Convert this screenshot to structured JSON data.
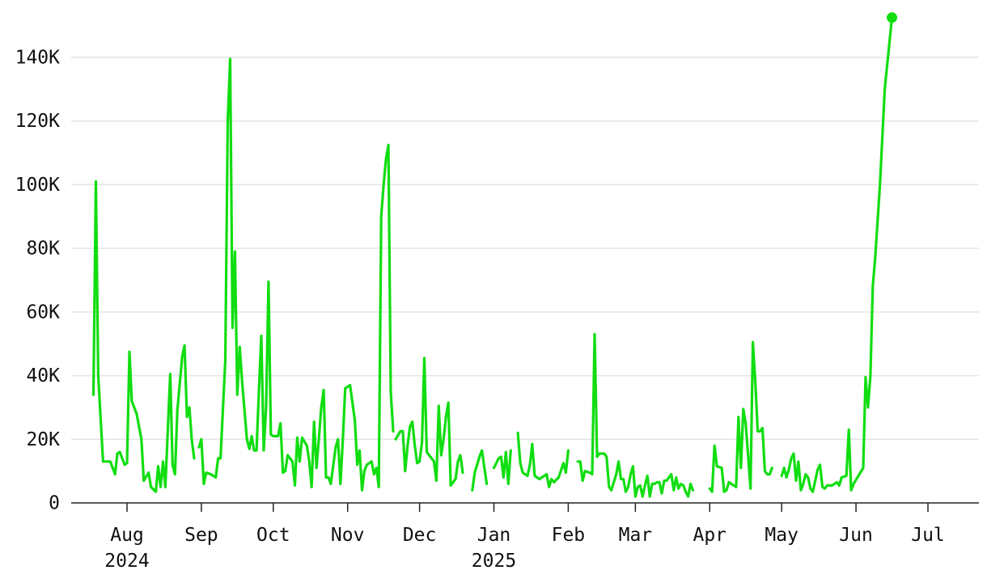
{
  "chart_data": {
    "type": "line",
    "title": "",
    "xlabel": "",
    "ylabel": "",
    "color": "#11dd11",
    "ylim": [
      0,
      150000
    ],
    "grid": "horizontal",
    "legend": "none",
    "end_marker": true,
    "y_ticks": [
      {
        "value": 0,
        "label": "0"
      },
      {
        "value": 20000,
        "label": "20K"
      },
      {
        "value": 40000,
        "label": "40K"
      },
      {
        "value": 60000,
        "label": "60K"
      },
      {
        "value": 80000,
        "label": "80K"
      },
      {
        "value": 100000,
        "label": "100K"
      },
      {
        "value": 120000,
        "label": "120K"
      },
      {
        "value": 140000,
        "label": "140K"
      }
    ],
    "x_ticks": [
      {
        "date": "2024-08-01",
        "label": "Aug",
        "year": "2024"
      },
      {
        "date": "2024-09-01",
        "label": "Sep",
        "year": ""
      },
      {
        "date": "2024-10-01",
        "label": "Oct",
        "year": ""
      },
      {
        "date": "2024-11-01",
        "label": "Nov",
        "year": ""
      },
      {
        "date": "2024-12-01",
        "label": "Dec",
        "year": ""
      },
      {
        "date": "2025-01-01",
        "label": "Jan",
        "year": "2025"
      },
      {
        "date": "2025-02-01",
        "label": "Feb",
        "year": ""
      },
      {
        "date": "2025-03-01",
        "label": "Mar",
        "year": ""
      },
      {
        "date": "2025-04-01",
        "label": "Apr",
        "year": ""
      },
      {
        "date": "2025-05-01",
        "label": "May",
        "year": ""
      },
      {
        "date": "2025-06-01",
        "label": "Jun",
        "year": ""
      },
      {
        "date": "2025-07-01",
        "label": "Jul",
        "year": ""
      }
    ],
    "x_range": [
      "2024-07-12",
      "2025-07-27"
    ],
    "segments": [
      [
        [
          "2024-07-18",
          34000
        ],
        [
          "2024-07-19",
          101000
        ],
        [
          "2024-07-20",
          40000
        ],
        [
          "2024-07-22",
          13000
        ],
        [
          "2024-07-25",
          13000
        ],
        [
          "2024-07-27",
          9000
        ],
        [
          "2024-07-28",
          15500
        ],
        [
          "2024-07-29",
          16000
        ],
        [
          "2024-07-31",
          12000
        ],
        [
          "2024-08-01",
          12500
        ],
        [
          "2024-08-02",
          47500
        ],
        [
          "2024-08-03",
          32000
        ],
        [
          "2024-08-05",
          28000
        ],
        [
          "2024-08-07",
          20000
        ],
        [
          "2024-08-08",
          7000
        ],
        [
          "2024-08-10",
          9500
        ],
        [
          "2024-08-11",
          5000
        ],
        [
          "2024-08-13",
          3500
        ],
        [
          "2024-08-14",
          11500
        ],
        [
          "2024-08-15",
          5000
        ],
        [
          "2024-08-16",
          13000
        ],
        [
          "2024-08-17",
          5000
        ],
        [
          "2024-08-19",
          40500
        ],
        [
          "2024-08-20",
          12000
        ],
        [
          "2024-08-21",
          9000
        ],
        [
          "2024-08-22",
          29000
        ],
        [
          "2024-08-24",
          46000
        ],
        [
          "2024-08-25",
          49500
        ],
        [
          "2024-08-26",
          27000
        ],
        [
          "2024-08-27",
          30000
        ],
        [
          "2024-08-28",
          20000
        ],
        [
          "2024-08-29",
          14000
        ]
      ],
      [
        [
          "2024-08-31",
          17500
        ],
        [
          "2024-09-01",
          20000
        ],
        [
          "2024-09-02",
          6000
        ],
        [
          "2024-09-03",
          9500
        ],
        [
          "2024-09-05",
          9000
        ],
        [
          "2024-09-07",
          8000
        ],
        [
          "2024-09-08",
          14000
        ],
        [
          "2024-09-09",
          14000
        ],
        [
          "2024-09-11",
          45000
        ],
        [
          "2024-09-12",
          120000
        ],
        [
          "2024-09-13",
          139500
        ],
        [
          "2024-09-14",
          55000
        ],
        [
          "2024-09-15",
          79000
        ],
        [
          "2024-09-16",
          34000
        ],
        [
          "2024-09-17",
          49000
        ],
        [
          "2024-09-18",
          38000
        ],
        [
          "2024-09-20",
          20000
        ],
        [
          "2024-09-21",
          17000
        ],
        [
          "2024-09-22",
          21000
        ],
        [
          "2024-09-23",
          16500
        ],
        [
          "2024-09-24",
          16500
        ],
        [
          "2024-09-25",
          35000
        ],
        [
          "2024-09-26",
          52500
        ],
        [
          "2024-09-27",
          16500
        ],
        [
          "2024-09-28",
          30000
        ],
        [
          "2024-09-29",
          69500
        ],
        [
          "2024-09-30",
          21500
        ],
        [
          "2024-10-01",
          21000
        ],
        [
          "2024-10-03",
          21000
        ],
        [
          "2024-10-04",
          25000
        ],
        [
          "2024-10-05",
          9500
        ],
        [
          "2024-10-06",
          10000
        ],
        [
          "2024-10-07",
          15000
        ],
        [
          "2024-10-09",
          13000
        ],
        [
          "2024-10-10",
          5500
        ],
        [
          "2024-10-11",
          20500
        ],
        [
          "2024-10-12",
          13000
        ],
        [
          "2024-10-13",
          20500
        ],
        [
          "2024-10-15",
          18000
        ],
        [
          "2024-10-16",
          13000
        ],
        [
          "2024-10-17",
          5000
        ],
        [
          "2024-10-18",
          25500
        ],
        [
          "2024-10-19",
          11000
        ],
        [
          "2024-10-20",
          20000
        ],
        [
          "2024-10-21",
          30000
        ],
        [
          "2024-10-22",
          35500
        ],
        [
          "2024-10-23",
          8000
        ],
        [
          "2024-10-24",
          8000
        ],
        [
          "2024-10-25",
          6000
        ],
        [
          "2024-10-27",
          17500
        ],
        [
          "2024-10-28",
          20000
        ],
        [
          "2024-10-29",
          6000
        ],
        [
          "2024-10-30",
          20000
        ],
        [
          "2024-10-31",
          36000
        ],
        [
          "2024-11-02",
          37000
        ],
        [
          "2024-11-04",
          26000
        ],
        [
          "2024-11-05",
          12000
        ],
        [
          "2024-11-06",
          16500
        ],
        [
          "2024-11-07",
          4000
        ],
        [
          "2024-11-08",
          10000
        ],
        [
          "2024-11-09",
          12000
        ],
        [
          "2024-11-11",
          13000
        ],
        [
          "2024-11-12",
          9000
        ],
        [
          "2024-11-13",
          11000
        ],
        [
          "2024-11-14",
          5000
        ],
        [
          "2024-11-15",
          90000
        ],
        [
          "2024-11-16",
          100000
        ],
        [
          "2024-11-17",
          108000
        ],
        [
          "2024-11-18",
          112500
        ],
        [
          "2024-11-19",
          35000
        ],
        [
          "2024-11-20",
          22500
        ]
      ],
      [
        [
          "2024-11-21",
          20000
        ],
        [
          "2024-11-23",
          22500
        ],
        [
          "2024-11-24",
          22500
        ],
        [
          "2024-11-25",
          10000
        ],
        [
          "2024-11-26",
          18000
        ],
        [
          "2024-11-27",
          24000
        ],
        [
          "2024-11-28",
          25500
        ],
        [
          "2024-11-29",
          18000
        ],
        [
          "2024-11-30",
          12500
        ],
        [
          "2024-12-01",
          13000
        ],
        [
          "2024-12-02",
          19000
        ],
        [
          "2024-12-03",
          45500
        ],
        [
          "2024-12-04",
          16000
        ],
        [
          "2024-12-05",
          15000
        ],
        [
          "2024-12-07",
          13000
        ],
        [
          "2024-12-08",
          7000
        ],
        [
          "2024-12-09",
          30500
        ],
        [
          "2024-12-10",
          15000
        ],
        [
          "2024-12-11",
          20000
        ],
        [
          "2024-12-12",
          27000
        ],
        [
          "2024-12-13",
          31500
        ],
        [
          "2024-12-14",
          5500
        ],
        [
          "2024-12-16",
          7500
        ],
        [
          "2024-12-17",
          13000
        ],
        [
          "2024-12-18",
          15000
        ],
        [
          "2024-12-19",
          9500
        ]
      ],
      [
        [
          "2024-12-23",
          4000
        ],
        [
          "2024-12-24",
          9500
        ],
        [
          "2024-12-26",
          14500
        ],
        [
          "2024-12-27",
          16500
        ],
        [
          "2024-12-29",
          6000
        ]
      ],
      [
        [
          "2025-01-01",
          11000
        ],
        [
          "2025-01-03",
          14000
        ],
        [
          "2025-01-04",
          14500
        ],
        [
          "2025-01-05",
          8000
        ],
        [
          "2025-01-06",
          16000
        ],
        [
          "2025-01-07",
          6000
        ],
        [
          "2025-01-08",
          16500
        ]
      ],
      [
        [
          "2025-01-11",
          22000
        ],
        [
          "2025-01-12",
          12500
        ],
        [
          "2025-01-13",
          9500
        ],
        [
          "2025-01-15",
          8500
        ],
        [
          "2025-01-16",
          12000
        ],
        [
          "2025-01-17",
          18500
        ],
        [
          "2025-01-18",
          8500
        ],
        [
          "2025-01-20",
          7500
        ],
        [
          "2025-01-22",
          8500
        ],
        [
          "2025-01-23",
          9000
        ],
        [
          "2025-01-24",
          5000
        ],
        [
          "2025-01-25",
          7500
        ],
        [
          "2025-01-26",
          6500
        ],
        [
          "2025-01-28",
          8000
        ],
        [
          "2025-01-30",
          12500
        ],
        [
          "2025-01-31",
          9500
        ],
        [
          "2025-02-01",
          16500
        ]
      ],
      [
        [
          "2025-02-05",
          13000
        ],
        [
          "2025-02-06",
          13000
        ],
        [
          "2025-02-07",
          7000
        ],
        [
          "2025-02-08",
          10000
        ],
        [
          "2025-02-10",
          9500
        ],
        [
          "2025-02-11",
          9000
        ],
        [
          "2025-02-12",
          53000
        ],
        [
          "2025-02-13",
          14500
        ],
        [
          "2025-02-14",
          15500
        ],
        [
          "2025-02-16",
          15500
        ],
        [
          "2025-02-17",
          14500
        ],
        [
          "2025-02-18",
          5000
        ],
        [
          "2025-02-19",
          4000
        ],
        [
          "2025-02-21",
          9000
        ],
        [
          "2025-02-22",
          13000
        ],
        [
          "2025-02-23",
          7500
        ],
        [
          "2025-02-24",
          7500
        ],
        [
          "2025-02-25",
          3500
        ],
        [
          "2025-02-26",
          5000
        ],
        [
          "2025-02-27",
          9000
        ],
        [
          "2025-02-28",
          11500
        ],
        [
          "2025-03-01",
          2000
        ],
        [
          "2025-03-02",
          5000
        ],
        [
          "2025-03-03",
          5500
        ],
        [
          "2025-03-04",
          2000
        ],
        [
          "2025-03-05",
          5500
        ],
        [
          "2025-03-06",
          8500
        ],
        [
          "2025-03-07",
          2000
        ],
        [
          "2025-03-08",
          6000
        ],
        [
          "2025-03-09",
          6000
        ],
        [
          "2025-03-10",
          6500
        ],
        [
          "2025-03-11",
          6500
        ],
        [
          "2025-03-12",
          3000
        ],
        [
          "2025-03-13",
          7000
        ],
        [
          "2025-03-14",
          7000
        ],
        [
          "2025-03-15",
          8000
        ],
        [
          "2025-03-16",
          9000
        ],
        [
          "2025-03-17",
          4000
        ],
        [
          "2025-03-18",
          8000
        ],
        [
          "2025-03-19",
          4500
        ],
        [
          "2025-03-20",
          6000
        ],
        [
          "2025-03-21",
          5500
        ],
        [
          "2025-03-22",
          3500
        ],
        [
          "2025-03-23",
          2000
        ],
        [
          "2025-03-24",
          6000
        ],
        [
          "2025-03-25",
          4000
        ]
      ],
      [
        [
          "2025-04-01",
          4500
        ],
        [
          "2025-04-02",
          3500
        ],
        [
          "2025-04-03",
          18000
        ],
        [
          "2025-04-04",
          11500
        ],
        [
          "2025-04-06",
          11000
        ],
        [
          "2025-04-07",
          3500
        ],
        [
          "2025-04-08",
          4000
        ],
        [
          "2025-04-09",
          6500
        ],
        [
          "2025-04-10",
          6000
        ],
        [
          "2025-04-11",
          5500
        ],
        [
          "2025-04-12",
          5000
        ],
        [
          "2025-04-13",
          27000
        ],
        [
          "2025-04-14",
          11000
        ],
        [
          "2025-04-15",
          29500
        ],
        [
          "2025-04-16",
          25000
        ],
        [
          "2025-04-17",
          15000
        ],
        [
          "2025-04-18",
          4500
        ],
        [
          "2025-04-19",
          50500
        ],
        [
          "2025-04-20",
          38000
        ],
        [
          "2025-04-21",
          22500
        ],
        [
          "2025-04-22",
          22500
        ],
        [
          "2025-04-23",
          23500
        ],
        [
          "2025-04-24",
          10000
        ],
        [
          "2025-04-25",
          9000
        ],
        [
          "2025-04-26",
          9000
        ],
        [
          "2025-04-27",
          11000
        ]
      ],
      [
        [
          "2025-05-01",
          8500
        ],
        [
          "2025-05-02",
          11000
        ],
        [
          "2025-05-03",
          8000
        ],
        [
          "2025-05-04",
          10500
        ],
        [
          "2025-05-05",
          14000
        ],
        [
          "2025-05-06",
          15500
        ],
        [
          "2025-05-07",
          7000
        ],
        [
          "2025-05-08",
          13000
        ],
        [
          "2025-05-09",
          4000
        ],
        [
          "2025-05-10",
          6000
        ],
        [
          "2025-05-11",
          9000
        ],
        [
          "2025-05-12",
          8000
        ],
        [
          "2025-05-13",
          4500
        ],
        [
          "2025-05-14",
          3500
        ],
        [
          "2025-05-16",
          10500
        ],
        [
          "2025-05-17",
          12000
        ],
        [
          "2025-05-18",
          5000
        ],
        [
          "2025-05-19",
          4500
        ],
        [
          "2025-05-20",
          5500
        ],
        [
          "2025-05-22",
          5500
        ],
        [
          "2025-05-23",
          6000
        ],
        [
          "2025-05-24",
          6500
        ],
        [
          "2025-05-25",
          5500
        ],
        [
          "2025-05-26",
          8000
        ],
        [
          "2025-05-28",
          8500
        ],
        [
          "2025-05-29",
          23000
        ],
        [
          "2025-05-30",
          4000
        ],
        [
          "2025-05-31",
          6000
        ],
        [
          "2025-06-02",
          8500
        ],
        [
          "2025-06-04",
          11000
        ],
        [
          "2025-06-05",
          39500
        ],
        [
          "2025-06-06",
          30000
        ],
        [
          "2025-06-07",
          40000
        ],
        [
          "2025-06-08",
          68000
        ],
        [
          "2025-06-09",
          77000
        ],
        [
          "2025-06-11",
          100000
        ],
        [
          "2025-06-13",
          130000
        ],
        [
          "2025-06-16",
          152500
        ]
      ]
    ]
  }
}
